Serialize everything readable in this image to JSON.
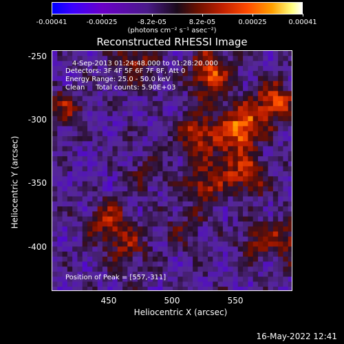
{
  "colorbar": {
    "ticks": [
      "-0.00041",
      "-0.00025",
      "-8.2e-05",
      "8.2e-05",
      "0.00025",
      "0.00041"
    ],
    "units": "(photons cm⁻² s⁻¹ asec⁻²)"
  },
  "title": "Reconstructed RHESSI Image",
  "annotations": {
    "time": "4-Sep-2013 01:24:48.000 to 01:28:20.000",
    "detectors": "Detectors: 3F 4F 5F 6F 7F 8F, Att 0",
    "energy": "Energy Range: 25.0 - 50.0 keV",
    "clean": "Clean     Total counts: 5.90E+03",
    "peak": "Position of Peak = [557,-311]"
  },
  "timestamp": "16-May-2022 12:41",
  "chart_data": {
    "type": "heatmap",
    "title": "Reconstructed RHESSI Image",
    "xlabel": "Heliocentric X (arcsec)",
    "ylabel": "Heliocentric Y (arcsec)",
    "xlim": [
      405,
      595
    ],
    "ylim": [
      -435,
      -245
    ],
    "xticks": [
      "450",
      "500",
      "550"
    ],
    "yticks": [
      "-250",
      "-300",
      "-350",
      "-400"
    ],
    "colorbar_range": [
      -0.00041,
      0.00041
    ],
    "peak": [
      557,
      -311
    ],
    "sources": [
      {
        "x": 555,
        "y": -305,
        "value": 0.00041
      },
      {
        "x": 520,
        "y": -310,
        "value": 0.0003
      },
      {
        "x": 580,
        "y": -285,
        "value": 0.00032
      },
      {
        "x": 530,
        "y": -270,
        "value": 0.00022
      },
      {
        "x": 470,
        "y": -255,
        "value": 0.0002
      },
      {
        "x": 530,
        "y": -255,
        "value": 0.00018
      },
      {
        "x": 525,
        "y": -350,
        "value": 0.00025
      },
      {
        "x": 560,
        "y": -345,
        "value": 0.00022
      },
      {
        "x": 545,
        "y": -330,
        "value": 0.00018
      },
      {
        "x": 450,
        "y": -380,
        "value": 0.00025
      },
      {
        "x": 465,
        "y": -400,
        "value": 0.00018
      },
      {
        "x": 415,
        "y": -290,
        "value": 0.00018
      },
      {
        "x": 590,
        "y": -395,
        "value": 0.00022
      },
      {
        "x": 565,
        "y": -395,
        "value": 0.00015
      },
      {
        "x": 480,
        "y": -340,
        "value": 0.00012
      },
      {
        "x": 510,
        "y": -385,
        "value": 0.00012
      }
    ]
  }
}
